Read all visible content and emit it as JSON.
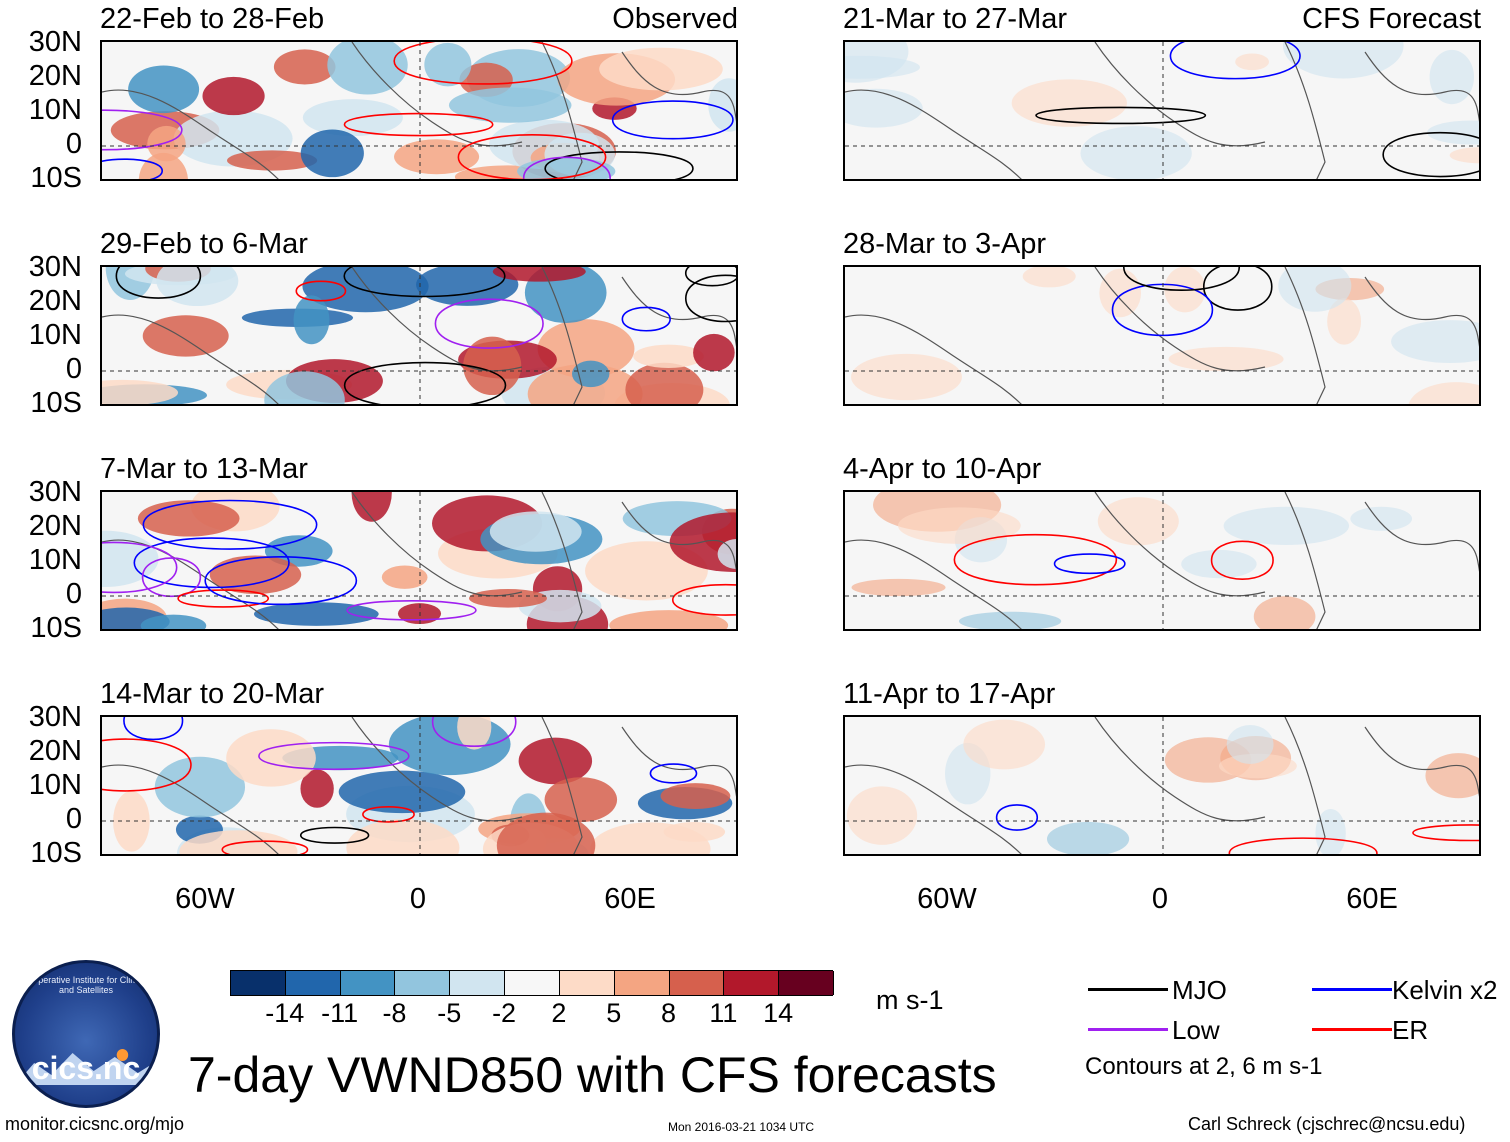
{
  "title": "7-day VWND850 with CFS forecasts",
  "lat_labels": [
    "30N",
    "20N",
    "10N",
    "0",
    "10S"
  ],
  "lon_labels": [
    "60W",
    "0",
    "60E"
  ],
  "panels": [
    {
      "label": "22-Feb to 28-Feb",
      "tag": "Observed"
    },
    {
      "label": "21-Mar to 27-Mar",
      "tag": "CFS Forecast"
    },
    {
      "label": "29-Feb to 6-Mar",
      "tag": ""
    },
    {
      "label": "28-Mar to 3-Apr",
      "tag": ""
    },
    {
      "label": "7-Mar to 13-Mar",
      "tag": ""
    },
    {
      "label": "4-Apr to 10-Apr",
      "tag": ""
    },
    {
      "label": "14-Mar to 20-Mar",
      "tag": ""
    },
    {
      "label": "11-Apr to 17-Apr",
      "tag": ""
    }
  ],
  "colorbar": {
    "colors": [
      "#08306b",
      "#2166ac",
      "#4393c3",
      "#92c5de",
      "#d1e5f0",
      "#f7f7f7",
      "#fddbc7",
      "#f4a582",
      "#d6604d",
      "#b2182b",
      "#67001f"
    ],
    "ticks": [
      "-14",
      "-11",
      "-8",
      "-5",
      "-2",
      "2",
      "5",
      "8",
      "11",
      "14"
    ],
    "units": "m s-1"
  },
  "legend": {
    "items": [
      {
        "label": "MJO",
        "color": "#000000"
      },
      {
        "label": "Kelvin x2",
        "color": "#0000ff"
      },
      {
        "label": "Low",
        "color": "#a020f0"
      },
      {
        "label": "ER",
        "color": "#ff0000"
      }
    ],
    "note": "Contours at 2, 6 m s-1"
  },
  "logo_text": "cics.nc",
  "logo_ring": "Cooperative Institute for Climate and Satellites",
  "footer": {
    "left": "monitor.cicsnc.org/mjo",
    "center": "Mon 2016-03-21 1034 UTC",
    "right": "Carl Schreck (cjschrec@ncsu.edu)"
  }
}
